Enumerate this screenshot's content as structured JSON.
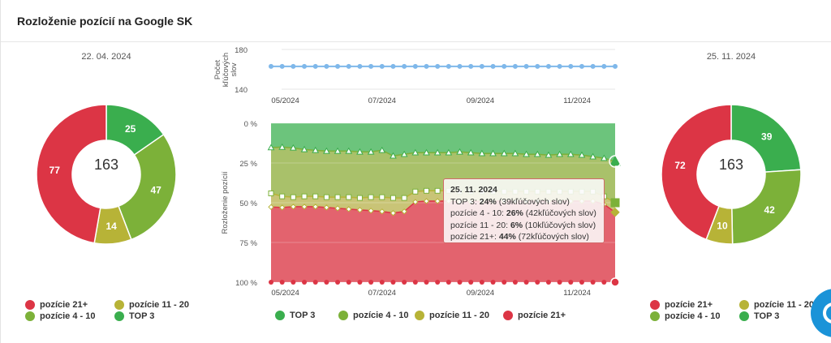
{
  "title": "Rozloženie pozícií na Google SK",
  "left_donut": {
    "date": "22. 04. 2024",
    "total": "163",
    "slices": [
      {
        "name": "TOP 3",
        "value": 25,
        "color": "#3aae4e"
      },
      {
        "name": "pozície 4 - 10",
        "value": 47,
        "color": "#7cb139"
      },
      {
        "name": "pozície 11 - 20",
        "value": 14,
        "color": "#b7b337"
      },
      {
        "name": "pozície 21+",
        "value": 77,
        "color": "#dc3545"
      }
    ]
  },
  "right_donut": {
    "date": "25. 11. 2024",
    "total": "163",
    "slices": [
      {
        "name": "TOP 3",
        "value": 39,
        "color": "#3aae4e"
      },
      {
        "name": "pozície 4 - 10",
        "value": 42,
        "color": "#7cb139"
      },
      {
        "name": "pozície 11 - 20",
        "value": 10,
        "color": "#b7b337"
      },
      {
        "name": "pozície 21+",
        "value": 72,
        "color": "#dc3545"
      }
    ]
  },
  "legend_small": {
    "items": [
      {
        "label": "pozície 21+",
        "color": "#dc3545"
      },
      {
        "label": "pozície 11 - 20",
        "color": "#b7b337"
      },
      {
        "label": "pozície 4 - 10",
        "color": "#7cb139"
      },
      {
        "label": "TOP 3",
        "color": "#3aae4e"
      }
    ]
  },
  "legend_main": {
    "items": [
      {
        "label": "TOP 3",
        "color": "#3aae4e"
      },
      {
        "label": "pozície 4 - 10",
        "color": "#7cb139"
      },
      {
        "label": "pozície 11 - 20",
        "color": "#b7b337"
      },
      {
        "label": "pozície 21+",
        "color": "#dc3545"
      }
    ]
  },
  "top_chart": {
    "ylabel": "Počet kľúčových slov",
    "ylabel_lines": [
      "Počet",
      "kľúčových",
      "slov"
    ],
    "yticks": [
      "180",
      "140"
    ],
    "xticks": [
      "05/2024",
      "07/2024",
      "09/2024",
      "11/2024"
    ],
    "ylim": [
      140,
      180
    ]
  },
  "main_chart": {
    "ylabel": "Rozloženie pozícií",
    "yticks": [
      "0 %",
      "25 %",
      "50 %",
      "75 %",
      "100 %"
    ],
    "xticks": [
      "05/2024",
      "07/2024",
      "09/2024",
      "11/2024"
    ]
  },
  "tooltip": {
    "date": "25. 11. 2024",
    "lines": [
      {
        "prefix": "TOP 3: ",
        "pct": "24%",
        "suffix": " (39kľúčových slov)"
      },
      {
        "prefix": "pozície 4 - 10: ",
        "pct": "26%",
        "suffix": " (42kľúčových slov)"
      },
      {
        "prefix": "pozície 11 - 20: ",
        "pct": "6%",
        "suffix": " (10kľúčových slov)"
      },
      {
        "prefix": "pozície 21+: ",
        "pct": "44%",
        "suffix": " (72kľúčových slov)"
      }
    ]
  },
  "chart_data": [
    {
      "type": "pie",
      "title": "22. 04. 2024",
      "categories": [
        "TOP 3",
        "pozície 4 - 10",
        "pozície 11 - 20",
        "pozície 21+"
      ],
      "values": [
        25,
        47,
        14,
        77
      ],
      "center_label": "163"
    },
    {
      "type": "line",
      "xlabel": "",
      "ylabel": "Počet kľúčových slov",
      "ylim": [
        140,
        180
      ],
      "x": [
        "2024-04-22",
        "2024-04-29",
        "2024-05-06",
        "2024-05-13",
        "2024-05-20",
        "2024-05-27",
        "2024-06-03",
        "2024-06-10",
        "2024-06-17",
        "2024-06-24",
        "2024-07-01",
        "2024-07-08",
        "2024-07-15",
        "2024-07-22",
        "2024-07-29",
        "2024-08-05",
        "2024-08-12",
        "2024-08-19",
        "2024-08-26",
        "2024-09-02",
        "2024-09-09",
        "2024-09-16",
        "2024-09-23",
        "2024-09-30",
        "2024-10-07",
        "2024-10-14",
        "2024-10-21",
        "2024-10-28",
        "2024-11-04",
        "2024-11-11",
        "2024-11-18",
        "2024-11-25"
      ],
      "series": [
        {
          "values": [
            163,
            163,
            163,
            163,
            163,
            163,
            163,
            163,
            163,
            163,
            163,
            163,
            163,
            163,
            163,
            163,
            163,
            163,
            163,
            163,
            163,
            163,
            163,
            163,
            163,
            163,
            163,
            163,
            163,
            163,
            163,
            163
          ]
        }
      ],
      "grid": true
    },
    {
      "type": "area",
      "stacked": true,
      "ylabel": "Rozloženie pozícií",
      "ylim": [
        0,
        100
      ],
      "y_reversed": true,
      "x": [
        "2024-04-22",
        "2024-04-29",
        "2024-05-06",
        "2024-05-13",
        "2024-05-20",
        "2024-05-27",
        "2024-06-03",
        "2024-06-10",
        "2024-06-17",
        "2024-06-24",
        "2024-07-01",
        "2024-07-08",
        "2024-07-15",
        "2024-07-22",
        "2024-07-29",
        "2024-08-05",
        "2024-08-12",
        "2024-08-19",
        "2024-08-26",
        "2024-09-02",
        "2024-09-09",
        "2024-09-16",
        "2024-09-23",
        "2024-09-30",
        "2024-10-07",
        "2024-10-14",
        "2024-10-21",
        "2024-10-28",
        "2024-11-04",
        "2024-11-11",
        "2024-11-18",
        "2024-11-25"
      ],
      "series": [
        {
          "name": "TOP 3",
          "values": [
            15.3,
            15,
            15.5,
            16.5,
            17,
            17.5,
            17.5,
            17.5,
            18,
            18,
            17,
            20.5,
            19.5,
            18.5,
            18.5,
            18.5,
            18.5,
            18,
            18.5,
            19,
            19,
            19,
            19,
            19.5,
            19.5,
            20,
            19.5,
            19.5,
            20,
            21,
            22,
            24
          ]
        },
        {
          "name": "pozície 4 - 10",
          "values": [
            28.8,
            31,
            31,
            29.5,
            29,
            29,
            29,
            29,
            29,
            28.5,
            29.5,
            26.5,
            27.5,
            24.5,
            24,
            24,
            24,
            25,
            24.5,
            24,
            24,
            24,
            24,
            23.5,
            23.5,
            23,
            23.5,
            23.5,
            23,
            22,
            24,
            26
          ]
        },
        {
          "name": "pozície 11 - 20",
          "values": [
            8.6,
            7,
            6,
            6.5,
            6.5,
            6.5,
            7,
            7.5,
            7.5,
            8.5,
            9,
            9.5,
            8.5,
            6.5,
            6.5,
            6.5,
            6.5,
            6.5,
            6.5,
            6,
            6,
            6,
            6,
            6,
            6,
            6,
            6,
            6,
            6,
            6,
            5,
            6
          ]
        },
        {
          "name": "pozície 21+",
          "values": [
            47.3,
            47,
            47.5,
            47.5,
            47.5,
            47,
            46.5,
            46,
            45.5,
            45,
            44.5,
            43.5,
            44.5,
            50.5,
            51,
            51,
            51,
            50.5,
            50.5,
            51,
            51,
            51,
            51,
            51,
            51,
            51,
            51,
            51,
            51,
            51,
            49,
            44
          ]
        }
      ]
    },
    {
      "type": "pie",
      "title": "25. 11. 2024",
      "categories": [
        "TOP 3",
        "pozície 4 - 10",
        "pozície 11 - 20",
        "pozície 21+"
      ],
      "values": [
        39,
        42,
        10,
        72
      ],
      "center_label": "163"
    }
  ]
}
